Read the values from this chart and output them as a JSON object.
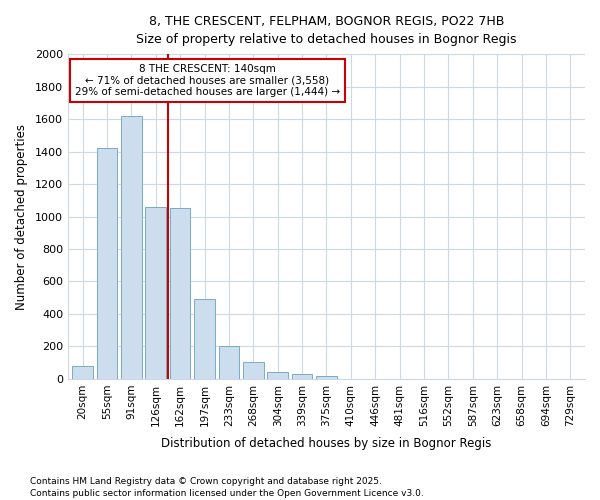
{
  "title1": "8, THE CRESCENT, FELPHAM, BOGNOR REGIS, PO22 7HB",
  "title2": "Size of property relative to detached houses in Bognor Regis",
  "xlabel": "Distribution of detached houses by size in Bognor Regis",
  "ylabel": "Number of detached properties",
  "categories": [
    "20sqm",
    "55sqm",
    "91sqm",
    "126sqm",
    "162sqm",
    "197sqm",
    "233sqm",
    "268sqm",
    "304sqm",
    "339sqm",
    "375sqm",
    "410sqm",
    "446sqm",
    "481sqm",
    "516sqm",
    "552sqm",
    "587sqm",
    "623sqm",
    "658sqm",
    "694sqm",
    "729sqm"
  ],
  "values": [
    80,
    1420,
    1620,
    1060,
    1050,
    490,
    200,
    105,
    40,
    30,
    20,
    0,
    0,
    0,
    0,
    0,
    0,
    0,
    0,
    0,
    0
  ],
  "bar_color": "#ccdded",
  "bar_edge_color": "#7aaac8",
  "marker_index": 3,
  "marker_label": "8 THE CRESCENT: 140sqm",
  "annotation_line1": "← 71% of detached houses are smaller (3,558)",
  "annotation_line2": "29% of semi-detached houses are larger (1,444) →",
  "marker_color": "#cc0000",
  "annotation_box_edge": "#cc0000",
  "footnote1": "Contains HM Land Registry data © Crown copyright and database right 2025.",
  "footnote2": "Contains public sector information licensed under the Open Government Licence v3.0.",
  "background_color": "#ffffff",
  "plot_bg_color": "#ffffff",
  "grid_color": "#ccd8e8",
  "ylim": [
    0,
    2000
  ],
  "yticks": [
    0,
    200,
    400,
    600,
    800,
    1000,
    1200,
    1400,
    1600,
    1800,
    2000
  ]
}
